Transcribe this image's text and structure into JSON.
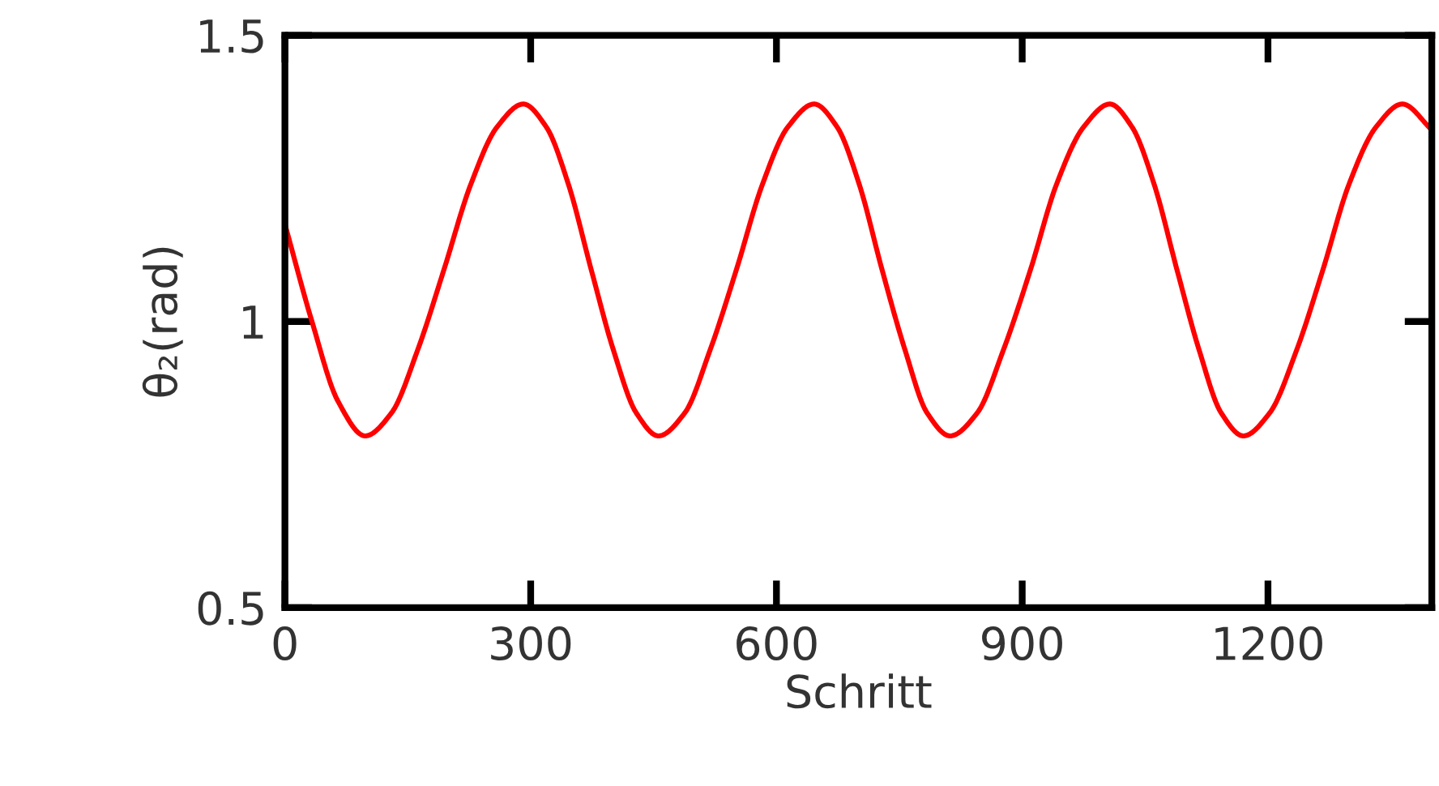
{
  "chart_data": {
    "type": "line",
    "xlabel": "Schritt",
    "ylabel": "θ₂(rad)",
    "xlim": [
      0,
      1400
    ],
    "ylim": [
      0.5,
      1.5
    ],
    "xticks": [
      0,
      300,
      600,
      900,
      1200
    ],
    "yticks": [
      0.5,
      1,
      1.5
    ],
    "grid": false,
    "legend": false,
    "marker": "none",
    "line_style": "solid",
    "series": [
      {
        "color": "#ff0000",
        "x": [
          0,
          33,
          65,
          98,
          130,
          162,
          194,
          227,
          259,
          291,
          319,
          346,
          374,
          401,
          429,
          456,
          488,
          519,
          551,
          583,
          614,
          646,
          674,
          701,
          729,
          757,
          784,
          812,
          845,
          877,
          910,
          942,
          975,
          1007,
          1034,
          1061,
          1089,
          1116,
          1143,
          1170,
          1202,
          1235,
          1267,
          1299,
          1332,
          1364,
          1400
        ],
        "values": [
          1.17,
          1.0,
          0.86,
          0.8,
          0.84,
          0.95,
          1.09,
          1.24,
          1.34,
          1.38,
          1.34,
          1.24,
          1.09,
          0.95,
          0.84,
          0.8,
          0.84,
          0.95,
          1.09,
          1.24,
          1.34,
          1.38,
          1.34,
          1.24,
          1.09,
          0.95,
          0.84,
          0.8,
          0.84,
          0.95,
          1.09,
          1.24,
          1.34,
          1.38,
          1.34,
          1.24,
          1.09,
          0.95,
          0.84,
          0.8,
          0.84,
          0.95,
          1.09,
          1.24,
          1.34,
          1.38,
          1.335
        ]
      }
    ]
  }
}
